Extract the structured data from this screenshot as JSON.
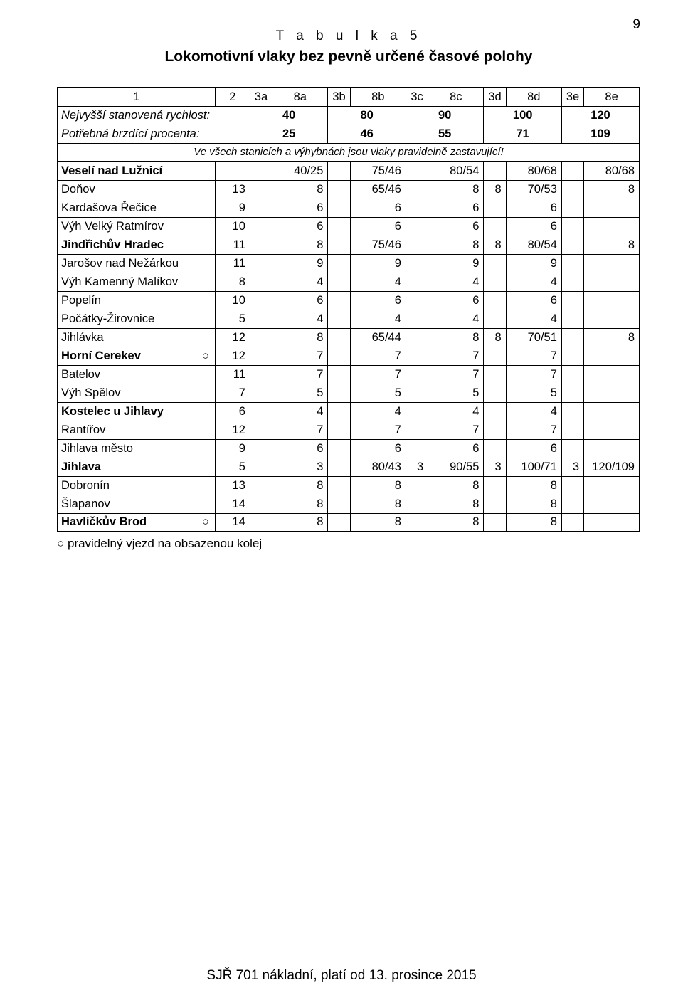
{
  "page_number": "9",
  "tab_title": "T a b u l k a  5",
  "subtitle": "Lokomotivní vlaky bez pevně určené časové polohy",
  "header": {
    "cols": [
      "1",
      "2",
      "3a",
      "8a",
      "3b",
      "8b",
      "3c",
      "8c",
      "3d",
      "8d",
      "3e",
      "8e"
    ],
    "speed_label": "Nejvyšší stanovená rychlost:",
    "speed_vals": [
      "40",
      "80",
      "90",
      "100",
      "120"
    ],
    "brake_label": "Potřebná brzdící procenta:",
    "brake_vals": [
      "25",
      "46",
      "55",
      "71",
      "109"
    ],
    "note": "Ve všech stanicích a výhybnách jsou vlaky pravidelně zastavující!"
  },
  "rows": [
    {
      "name": "Veselí nad Lužnicí",
      "bold": true,
      "sym": "",
      "a": "",
      "v": [
        "40/25",
        "75/46",
        "80/54",
        "80/68",
        "80/68"
      ],
      "b": [
        "",
        "",
        "",
        "",
        ""
      ]
    },
    {
      "name": "Doňov",
      "bold": false,
      "sym": "",
      "a": "13",
      "v": [
        "8",
        "65/46",
        "8",
        "70/53",
        "8"
      ],
      "b": [
        "",
        "",
        "",
        "8",
        ""
      ]
    },
    {
      "name": "Kardašova Řečice",
      "bold": false,
      "sym": "",
      "a": "9",
      "v": [
        "6",
        "6",
        "6",
        "6",
        ""
      ],
      "b": [
        "",
        "",
        "",
        "",
        ""
      ]
    },
    {
      "name": "Výh Velký Ratmírov",
      "bold": false,
      "sym": "",
      "a": "10",
      "v": [
        "6",
        "6",
        "6",
        "6",
        ""
      ],
      "b": [
        "",
        "",
        "",
        "",
        ""
      ]
    },
    {
      "name": "Jindřichův Hradec",
      "bold": true,
      "sym": "",
      "a": "11",
      "v": [
        "8",
        "75/46",
        "8",
        "80/54",
        "8"
      ],
      "b": [
        "",
        "",
        "",
        "8",
        ""
      ]
    },
    {
      "name": "Jarošov nad Nežárkou",
      "bold": false,
      "sym": "",
      "a": "11",
      "v": [
        "9",
        "9",
        "9",
        "9",
        ""
      ],
      "b": [
        "",
        "",
        "",
        "",
        ""
      ]
    },
    {
      "name": "Výh Kamenný Malíkov",
      "bold": false,
      "sym": "",
      "a": "8",
      "v": [
        "4",
        "4",
        "4",
        "4",
        ""
      ],
      "b": [
        "",
        "",
        "",
        "",
        ""
      ]
    },
    {
      "name": "Popelín",
      "bold": false,
      "sym": "",
      "a": "10",
      "v": [
        "6",
        "6",
        "6",
        "6",
        ""
      ],
      "b": [
        "",
        "",
        "",
        "",
        ""
      ]
    },
    {
      "name": "Počátky-Žirovnice",
      "bold": false,
      "sym": "",
      "a": "5",
      "v": [
        "4",
        "4",
        "4",
        "4",
        ""
      ],
      "b": [
        "",
        "",
        "",
        "",
        ""
      ]
    },
    {
      "name": "Jihlávka",
      "bold": false,
      "sym": "",
      "a": "12",
      "v": [
        "8",
        "65/44",
        "8",
        "70/51",
        "8"
      ],
      "b": [
        "",
        "",
        "",
        "8",
        ""
      ]
    },
    {
      "name": "Horní Cerekev",
      "bold": true,
      "sym": "○",
      "a": "12",
      "v": [
        "7",
        "7",
        "7",
        "7",
        ""
      ],
      "b": [
        "",
        "",
        "",
        "",
        ""
      ]
    },
    {
      "name": "Batelov",
      "bold": false,
      "sym": "",
      "a": "11",
      "v": [
        "7",
        "7",
        "7",
        "7",
        ""
      ],
      "b": [
        "",
        "",
        "",
        "",
        ""
      ]
    },
    {
      "name": "Výh Spělov",
      "bold": false,
      "sym": "",
      "a": "7",
      "v": [
        "5",
        "5",
        "5",
        "5",
        ""
      ],
      "b": [
        "",
        "",
        "",
        "",
        ""
      ]
    },
    {
      "name": "Kostelec u Jihlavy",
      "bold": true,
      "sym": "",
      "a": "6",
      "v": [
        "4",
        "4",
        "4",
        "4",
        ""
      ],
      "b": [
        "",
        "",
        "",
        "",
        ""
      ]
    },
    {
      "name": "Rantířov",
      "bold": false,
      "sym": "",
      "a": "12",
      "v": [
        "7",
        "7",
        "7",
        "7",
        ""
      ],
      "b": [
        "",
        "",
        "",
        "",
        ""
      ]
    },
    {
      "name": "Jihlava město",
      "bold": false,
      "sym": "",
      "a": "9",
      "v": [
        "6",
        "6",
        "6",
        "6",
        ""
      ],
      "b": [
        "",
        "",
        "",
        "",
        ""
      ]
    },
    {
      "name": "Jihlava",
      "bold": true,
      "sym": "",
      "a": "5",
      "v": [
        "3",
        "80/43",
        "3",
        "90/55",
        "3"
      ],
      "b": [
        "",
        "",
        "3",
        "100/71",
        "120/109"
      ],
      "special": true
    },
    {
      "name": "Dobronín",
      "bold": false,
      "sym": "",
      "a": "13",
      "v": [
        "8",
        "8",
        "8",
        "8",
        ""
      ],
      "b": [
        "",
        "",
        "",
        "",
        ""
      ]
    },
    {
      "name": "Šlapanov",
      "bold": false,
      "sym": "",
      "a": "14",
      "v": [
        "8",
        "8",
        "8",
        "8",
        ""
      ],
      "b": [
        "",
        "",
        "",
        "",
        ""
      ]
    },
    {
      "name": "Havlíčkův Brod",
      "bold": true,
      "sym": "○",
      "a": "14",
      "v": [
        "8",
        "8",
        "8",
        "8",
        ""
      ],
      "b": [
        "",
        "",
        "",
        "",
        ""
      ]
    }
  ],
  "legend": "○ pravidelný vjezd na obsazenou kolej",
  "footer": "SJŘ 701 nákladní, platí od 13. prosince 2015"
}
